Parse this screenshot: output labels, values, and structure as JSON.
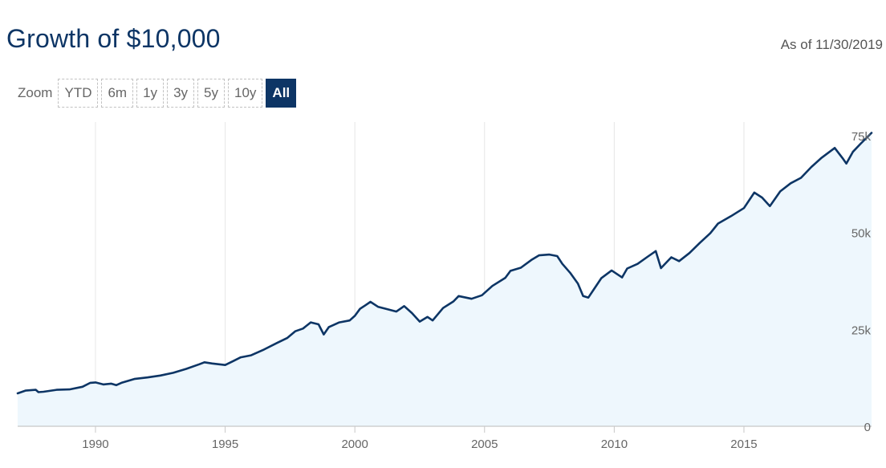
{
  "header": {
    "title": "Growth of $10,000",
    "as_of": "As of 11/30/2019"
  },
  "zoom": {
    "label": "Zoom",
    "buttons": [
      {
        "label": "YTD",
        "active": false
      },
      {
        "label": "6m",
        "active": false
      },
      {
        "label": "1y",
        "active": false
      },
      {
        "label": "3y",
        "active": false
      },
      {
        "label": "5y",
        "active": false
      },
      {
        "label": "10y",
        "active": false
      },
      {
        "label": "All",
        "active": true
      }
    ]
  },
  "colors": {
    "line": "#0d3565",
    "area": "#eef7fd",
    "grid": "#e6e6e6",
    "axis": "#c8c8c8",
    "label": "#666666"
  },
  "chart_data": {
    "type": "area",
    "title": "Growth of $10,000",
    "xlabel": "",
    "ylabel": "",
    "x_ticks": [
      1990,
      1995,
      2000,
      2005,
      2010,
      2015
    ],
    "y_ticks": [
      {
        "value": 0,
        "label": "0"
      },
      {
        "value": 25000,
        "label": "25k"
      },
      {
        "value": 50000,
        "label": "50k"
      },
      {
        "value": 75000,
        "label": "75k"
      }
    ],
    "xlim": [
      1987.0,
      2019.92
    ],
    "ylim": [
      0,
      78500
    ],
    "grid": {
      "x": true,
      "y": false
    },
    "series": [
      {
        "x": [
          1987.0,
          1987.3,
          1987.7,
          1987.8,
          1988.0,
          1988.5,
          1989.0,
          1989.5,
          1989.8,
          1990.0,
          1990.3,
          1990.6,
          1990.8,
          1991.0,
          1991.5,
          1992.0,
          1992.5,
          1993.0,
          1993.5,
          1994.0,
          1994.2,
          1994.5,
          1995.0,
          1995.3,
          1995.6,
          1996.0,
          1996.5,
          1997.0,
          1997.4,
          1997.7,
          1998.0,
          1998.3,
          1998.6,
          1998.8,
          1999.0,
          1999.4,
          1999.8,
          2000.0,
          2000.2,
          2000.4,
          2000.6,
          2000.9,
          2001.2,
          2001.6,
          2001.9,
          2002.2,
          2002.5,
          2002.8,
          2003.0,
          2003.4,
          2003.8,
          2004.0,
          2004.5,
          2004.9,
          2005.3,
          2005.8,
          2006.0,
          2006.4,
          2006.8,
          2007.1,
          2007.5,
          2007.8,
          2008.0,
          2008.3,
          2008.6,
          2008.8,
          2009.0,
          2009.2,
          2009.5,
          2009.9,
          2010.3,
          2010.5,
          2010.9,
          2011.3,
          2011.6,
          2011.8,
          2012.2,
          2012.5,
          2012.9,
          2013.3,
          2013.7,
          2014.0,
          2014.5,
          2015.0,
          2015.4,
          2015.7,
          2016.0,
          2016.4,
          2016.8,
          2017.2,
          2017.6,
          2018.0,
          2018.5,
          2018.8,
          2018.95,
          2019.2,
          2019.5,
          2019.92
        ],
        "values": [
          8500,
          9200,
          9400,
          8800,
          8900,
          9400,
          9500,
          10200,
          11200,
          11300,
          10800,
          11000,
          10600,
          11200,
          12200,
          12600,
          13100,
          13800,
          14800,
          16000,
          16500,
          16200,
          15800,
          16800,
          17800,
          18300,
          19800,
          21500,
          22800,
          24500,
          25200,
          26800,
          26300,
          23700,
          25600,
          26800,
          27300,
          28500,
          30300,
          31200,
          32100,
          30800,
          30300,
          29600,
          31000,
          29200,
          27000,
          28200,
          27300,
          30500,
          32200,
          33600,
          32900,
          33800,
          36200,
          38300,
          40100,
          40900,
          42900,
          44100,
          44300,
          43900,
          41900,
          39600,
          36800,
          33600,
          33200,
          35200,
          38200,
          40200,
          38400,
          40700,
          41900,
          43800,
          45200,
          40800,
          43600,
          42600,
          44700,
          47300,
          49800,
          52300,
          54200,
          56300,
          60300,
          59000,
          56800,
          60600,
          62700,
          64100,
          66900,
          69300,
          71800,
          69200,
          67800,
          70800,
          72900,
          75700
        ]
      }
    ]
  }
}
